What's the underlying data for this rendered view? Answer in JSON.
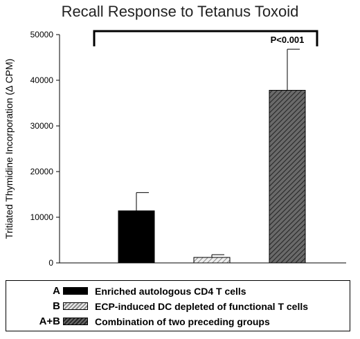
{
  "chart_data": {
    "type": "bar",
    "title": "Recall Response to Tetanus Toxoid",
    "ylabel": "Tritiated Thymidine Incorporation (Δ CPM)",
    "xlabel": "",
    "ylim": [
      0,
      50000
    ],
    "yticks": [
      0,
      10000,
      20000,
      30000,
      40000,
      50000
    ],
    "categories": [
      "A",
      "B",
      "A+B"
    ],
    "values": [
      11400,
      1200,
      37800
    ],
    "error_upper": [
      15400,
      1800,
      46800
    ],
    "bar_colors": [
      "#000000",
      "#d8d8d8",
      "#555555"
    ],
    "bar_patterns": [
      "solid",
      "light-hatch",
      "dark-hatch"
    ],
    "annotation": "P<0.001",
    "comparison_bracket": {
      "from_category": "A",
      "to_category": "A+B"
    }
  },
  "legend": {
    "items": [
      {
        "key": "A",
        "label": "Enriched autologous CD4 T cells"
      },
      {
        "key": "B",
        "label": "ECP-induced DC depleted of functional T cells"
      },
      {
        "key": "A+B",
        "label": "Combination of two preceding groups"
      }
    ]
  }
}
